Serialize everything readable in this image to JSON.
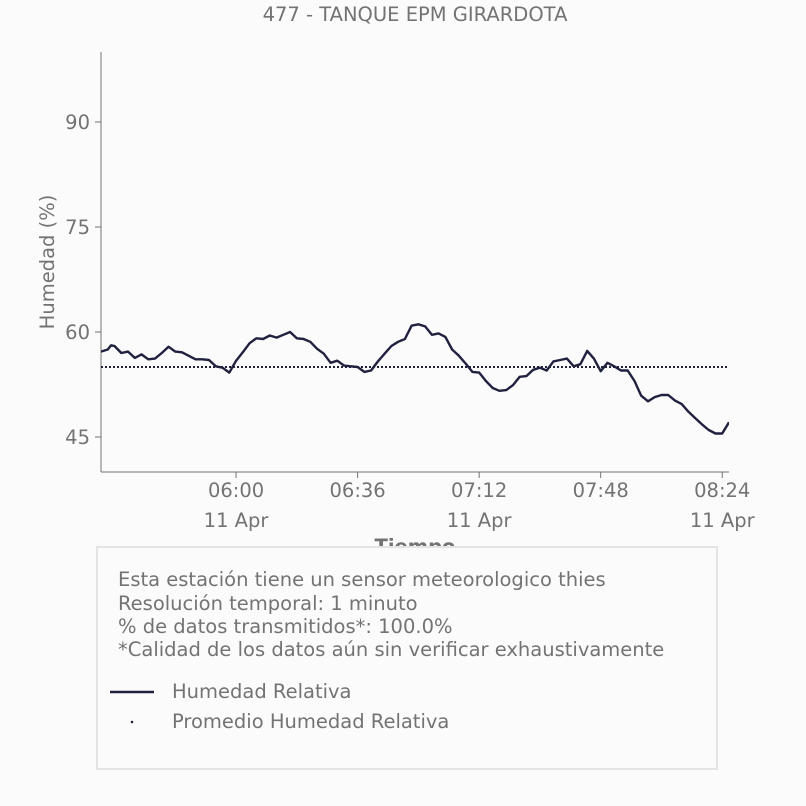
{
  "chart_data": {
    "type": "line",
    "title": "477 - TANQUE EPM GIRARDOTA",
    "xlabel": "Tiempo",
    "ylabel": "Humedad (%)",
    "ylim": [
      40,
      100
    ],
    "xlim": [
      "2024-04-11T05:20",
      "2024-04-11T08:26"
    ],
    "yticks": [
      "45",
      "60",
      "75",
      "90"
    ],
    "xticks": [
      {
        "time": "2024-04-11T06:00",
        "label": "06:00",
        "sublabel": "11 Apr"
      },
      {
        "time": "2024-04-11T06:36",
        "label": "06:36",
        "sublabel": ""
      },
      {
        "time": "2024-04-11T07:12",
        "label": "07:12",
        "sublabel": "11 Apr"
      },
      {
        "time": "2024-04-11T07:48",
        "label": "07:48",
        "sublabel": ""
      },
      {
        "time": "2024-04-11T08:24",
        "label": "08:24",
        "sublabel": "11 Apr"
      }
    ],
    "grid": false,
    "series": [
      {
        "name": "Humedad Relativa",
        "color": "#20203f",
        "style": "solid",
        "x": [
          "2024-04-11T05:20",
          "2024-04-11T05:22",
          "2024-04-11T05:23",
          "2024-04-11T05:24",
          "2024-04-11T05:26",
          "2024-04-11T05:28",
          "2024-04-11T05:30",
          "2024-04-11T05:32",
          "2024-04-11T05:34",
          "2024-04-11T05:36",
          "2024-04-11T05:38",
          "2024-04-11T05:40",
          "2024-04-11T05:42",
          "2024-04-11T05:44",
          "2024-04-11T05:46",
          "2024-04-11T05:48",
          "2024-04-11T05:50",
          "2024-04-11T05:52",
          "2024-04-11T05:54",
          "2024-04-11T05:56",
          "2024-04-11T05:58",
          "2024-04-11T06:00",
          "2024-04-11T06:02",
          "2024-04-11T06:04",
          "2024-04-11T06:06",
          "2024-04-11T06:08",
          "2024-04-11T06:10",
          "2024-04-11T06:12",
          "2024-04-11T06:14",
          "2024-04-11T06:16",
          "2024-04-11T06:18",
          "2024-04-11T06:20",
          "2024-04-11T06:22",
          "2024-04-11T06:24",
          "2024-04-11T06:26",
          "2024-04-11T06:28",
          "2024-04-11T06:30",
          "2024-04-11T06:32",
          "2024-04-11T06:34",
          "2024-04-11T06:36",
          "2024-04-11T06:38",
          "2024-04-11T06:40",
          "2024-04-11T06:42",
          "2024-04-11T06:44",
          "2024-04-11T06:46",
          "2024-04-11T06:48",
          "2024-04-11T06:50",
          "2024-04-11T06:52",
          "2024-04-11T06:54",
          "2024-04-11T06:56",
          "2024-04-11T06:58",
          "2024-04-11T07:00",
          "2024-04-11T07:02",
          "2024-04-11T07:04",
          "2024-04-11T07:06",
          "2024-04-11T07:08",
          "2024-04-11T07:10",
          "2024-04-11T07:12",
          "2024-04-11T07:14",
          "2024-04-11T07:16",
          "2024-04-11T07:18",
          "2024-04-11T07:20",
          "2024-04-11T07:22",
          "2024-04-11T07:24",
          "2024-04-11T07:26",
          "2024-04-11T07:28",
          "2024-04-11T07:30",
          "2024-04-11T07:32",
          "2024-04-11T07:34",
          "2024-04-11T07:36",
          "2024-04-11T07:38",
          "2024-04-11T07:40",
          "2024-04-11T07:42",
          "2024-04-11T07:44",
          "2024-04-11T07:46",
          "2024-04-11T07:48",
          "2024-04-11T07:50",
          "2024-04-11T07:52",
          "2024-04-11T07:54",
          "2024-04-11T07:56",
          "2024-04-11T07:58",
          "2024-04-11T08:00",
          "2024-04-11T08:02",
          "2024-04-11T08:04",
          "2024-04-11T08:06",
          "2024-04-11T08:08",
          "2024-04-11T08:10",
          "2024-04-11T08:12",
          "2024-04-11T08:14",
          "2024-04-11T08:16",
          "2024-04-11T08:18",
          "2024-04-11T08:20",
          "2024-04-11T08:22",
          "2024-04-11T08:24",
          "2024-04-11T08:26"
        ],
        "values": [
          57.2,
          57.5,
          58.1,
          58.0,
          57.0,
          57.2,
          56.3,
          56.8,
          56.1,
          56.2,
          57.0,
          57.9,
          57.2,
          57.1,
          56.6,
          56.1,
          56.1,
          56.0,
          55.1,
          54.9,
          54.2,
          55.9,
          57.1,
          58.4,
          59.1,
          59.0,
          59.5,
          59.2,
          59.6,
          60.0,
          59.1,
          59.0,
          58.6,
          57.6,
          56.9,
          55.6,
          55.9,
          55.2,
          55.1,
          55.0,
          54.3,
          54.5,
          55.8,
          56.9,
          58.0,
          58.6,
          59.0,
          60.9,
          61.1,
          60.8,
          59.6,
          59.8,
          59.3,
          57.5,
          56.6,
          55.5,
          54.3,
          54.2,
          53.0,
          52.0,
          51.6,
          51.7,
          52.4,
          53.6,
          53.7,
          54.6,
          54.9,
          54.5,
          55.8,
          56.0,
          56.2,
          55.1,
          55.4,
          57.3,
          56.2,
          54.4,
          55.6,
          55.1,
          54.5,
          54.5,
          53.0,
          50.9,
          50.1,
          50.7,
          51.0,
          51.0,
          50.2,
          49.7,
          48.6,
          47.7,
          46.8,
          46.0,
          45.5,
          45.5,
          47.1
        ]
      },
      {
        "name": "Promedio Humedad Relativa",
        "color": "#20203f",
        "style": "dotted",
        "x": [
          "2024-04-11T05:20",
          "2024-04-11T08:26"
        ],
        "values": [
          55.0,
          55.0
        ]
      }
    ],
    "legend_position": "bottom"
  },
  "info": {
    "lines": [
      "Esta estación tiene un sensor meteorologico thies",
      "Resolución temporal: 1 minuto",
      "% de datos transmitidos*: 100.0%",
      "*Calidad de los datos aún sin verificar exhaustivamente"
    ]
  },
  "legend": {
    "items": [
      {
        "label": "Humedad Relativa",
        "style": "solid"
      },
      {
        "label": "Promedio Humedad Relativa",
        "style": "dotted"
      }
    ]
  }
}
